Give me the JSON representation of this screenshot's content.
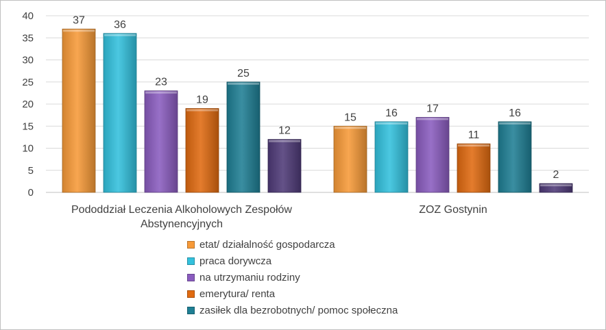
{
  "chart_data": {
    "type": "bar",
    "categories": [
      "Pododdział Leczenia Alkoholowych Zespołów Abstynencyjnych",
      "ZOZ Gostynin"
    ],
    "category_lines": [
      [
        "Pododdział Leczenia Alkoholowych Zespołów",
        "Abstynencyjnych"
      ],
      [
        "ZOZ Gostynin"
      ]
    ],
    "series": [
      {
        "name": "etat/ działalność gospodarcza",
        "values": [
          37,
          15
        ],
        "color": "#f79a38"
      },
      {
        "name": "praca dorywcza",
        "values": [
          36,
          16
        ],
        "color": "#33c1dd"
      },
      {
        "name": "na utrzymaniu rodziny",
        "values": [
          23,
          17
        ],
        "color": "#8a5cbf"
      },
      {
        "name": "emerytura/ renta",
        "values": [
          19,
          11
        ],
        "color": "#e06a10"
      },
      {
        "name": "zasiłek dla bezrobotnych/ pomoc społeczna",
        "values": [
          25,
          16
        ],
        "color": "#1f7f94"
      },
      {
        "name": "",
        "values": [
          12,
          2
        ],
        "color": "#4f3a78"
      }
    ],
    "ylim": [
      0,
      40
    ],
    "yticks": [
      0,
      5,
      10,
      15,
      20,
      25,
      30,
      35,
      40
    ],
    "grid": true,
    "legend_position": "bottom",
    "data_labels": true
  }
}
